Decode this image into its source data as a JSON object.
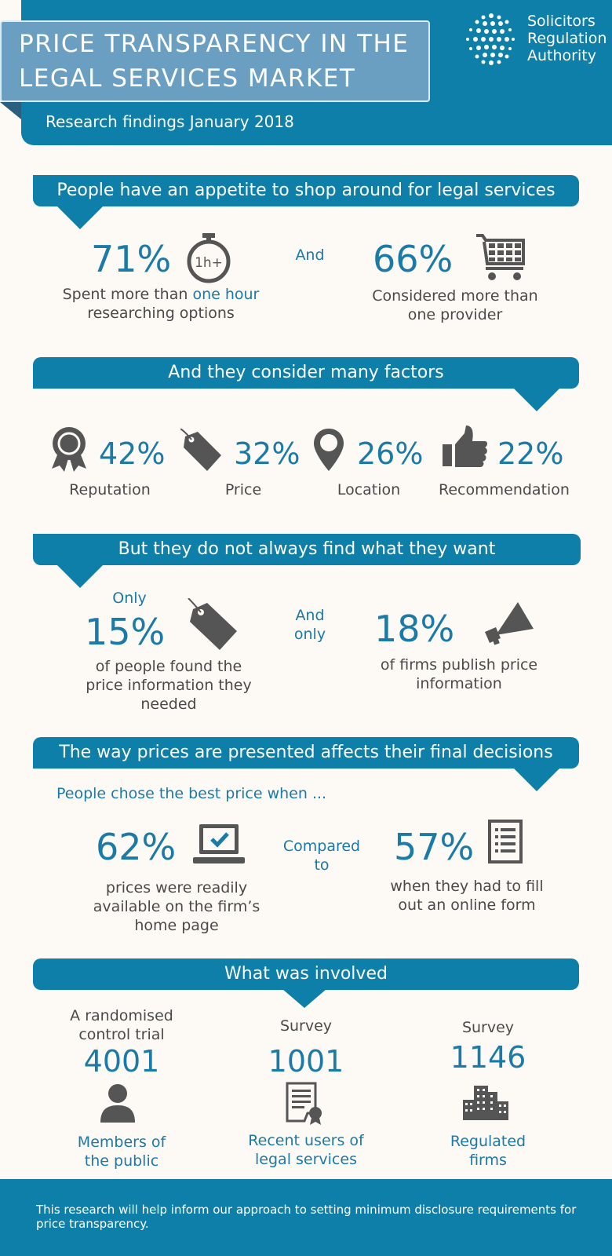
{
  "header": {
    "title_line1": "PRICE TRANSPARENCY IN THE",
    "title_line2": "LEGAL SERVICES MARKET",
    "subtitle": "Research findings January 2018",
    "logo": {
      "line1": "Solicitors",
      "line2": "Regulation",
      "line3": "Authority"
    }
  },
  "section1": {
    "heading": "People have an appetite to shop around for legal services",
    "left": {
      "stat": "71%",
      "icon": "stopwatch-icon",
      "icon_text": "1h+",
      "caption_pre": "Spent more than ",
      "caption_highlight": "one hour",
      "caption_line2": "researching options"
    },
    "connector": "And",
    "right": {
      "stat": "66%",
      "icon": "shopping-cart-icon",
      "caption_line1": "Considered more than",
      "caption_line2": "one provider"
    }
  },
  "section2": {
    "heading": "And they consider many factors",
    "factors": [
      {
        "stat": "42%",
        "label": "Reputation",
        "icon": "award-rosette-icon"
      },
      {
        "stat": "32%",
        "label": "Price",
        "icon": "price-tag-icon"
      },
      {
        "stat": "26%",
        "label": "Location",
        "icon": "location-pin-icon"
      },
      {
        "stat": "22%",
        "label": "Recommendation",
        "icon": "thumbs-up-icon"
      }
    ]
  },
  "section3": {
    "heading": "But they do not always find what they want",
    "left": {
      "pre": "Only",
      "stat": "15%",
      "icon": "price-tag-icon",
      "caption_line1": "of people found the",
      "caption_line2": "price information they",
      "caption_line3": "needed"
    },
    "connector_line1": "And",
    "connector_line2": "only",
    "right": {
      "stat": "18%",
      "icon": "megaphone-icon",
      "caption_line1": "of firms publish price",
      "caption_line2": "information"
    }
  },
  "section4": {
    "heading": "The way prices are presented affects their final decisions",
    "intro": "People chose the best price when ...",
    "left": {
      "stat": "62%",
      "icon": "laptop-check-icon",
      "caption_line1": "prices were readily",
      "caption_line2": "available on the firm’s",
      "caption_line3": "home page"
    },
    "connector_line1": "Compared",
    "connector_line2": "to",
    "right": {
      "stat": "57%",
      "icon": "form-icon",
      "caption_line1": "when they had to fill",
      "caption_line2": "out an online form"
    }
  },
  "section5": {
    "heading": "What was involved",
    "items": [
      {
        "type_line1": "A randomised",
        "type_line2": "control trial",
        "number": "4001",
        "icon": "person-icon",
        "label_line1": "Members of",
        "label_line2": "the public"
      },
      {
        "type_line1": "Survey",
        "type_line2": "",
        "number": "1001",
        "icon": "certificate-document-icon",
        "label_line1": "Recent users of",
        "label_line2": "legal services"
      },
      {
        "type_line1": "Survey",
        "type_line2": "",
        "number": "1146",
        "icon": "buildings-icon",
        "label_line1": "Regulated",
        "label_line2": "firms"
      }
    ]
  },
  "footer": {
    "text": "This research will help inform our approach to setting minimum disclosure requirements for price transparency."
  },
  "colors": {
    "teal": "#0d7fa8",
    "stat_teal": "#1a7aa8",
    "icon_grey": "#555555",
    "background": "#fdf9f4",
    "title_box": "#6a9fc1"
  }
}
